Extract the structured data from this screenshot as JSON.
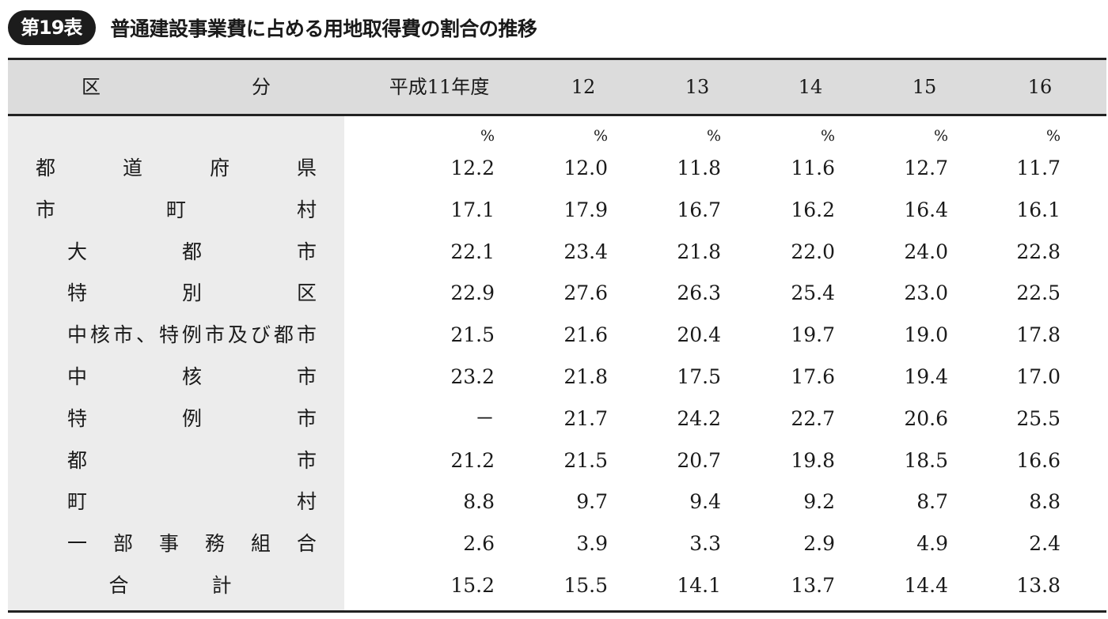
{
  "table_number": "第19表",
  "title": "普通建設事業費に占める用地取得費の割合の推移",
  "header": {
    "category_chars": [
      "区",
      "分"
    ],
    "years": [
      "平成11年度",
      "12",
      "13",
      "14",
      "15",
      "16"
    ]
  },
  "unit": "%",
  "rows": [
    {
      "chars": [
        "都",
        "道",
        "府",
        "県"
      ],
      "values": [
        "12.2",
        "12.0",
        "11.8",
        "11.6",
        "12.7",
        "11.7"
      ]
    },
    {
      "chars": [
        "市",
        "町",
        "村"
      ],
      "values": [
        "17.1",
        "17.9",
        "16.7",
        "16.2",
        "16.4",
        "16.1"
      ]
    },
    {
      "chars": [
        "大",
        "都",
        "市"
      ],
      "values": [
        "22.1",
        "23.4",
        "21.8",
        "22.0",
        "24.0",
        "22.8"
      ]
    },
    {
      "chars": [
        "特",
        "別",
        "区"
      ],
      "values": [
        "22.9",
        "27.6",
        "26.3",
        "25.4",
        "23.0",
        "22.5"
      ]
    },
    {
      "chars": [
        "中",
        "核",
        "市",
        "、",
        "特",
        "例",
        "市",
        "及",
        "び",
        "都",
        "市"
      ],
      "values": [
        "21.5",
        "21.6",
        "20.4",
        "19.7",
        "19.0",
        "17.8"
      ]
    },
    {
      "chars": [
        "中",
        "核",
        "市"
      ],
      "values": [
        "23.2",
        "21.8",
        "17.5",
        "17.6",
        "19.4",
        "17.0"
      ]
    },
    {
      "chars": [
        "特",
        "例",
        "市"
      ],
      "values": [
        "－",
        "21.7",
        "24.2",
        "22.7",
        "20.6",
        "25.5"
      ]
    },
    {
      "chars": [
        "都",
        "市"
      ],
      "values": [
        "21.2",
        "21.5",
        "20.7",
        "19.8",
        "18.5",
        "16.6"
      ]
    },
    {
      "chars": [
        "町",
        "村"
      ],
      "values": [
        "8.8",
        "9.7",
        "9.4",
        "9.2",
        "8.7",
        "8.8"
      ]
    },
    {
      "chars": [
        "一",
        "部",
        "事",
        "務",
        "組",
        "合"
      ],
      "values": [
        "2.6",
        "3.9",
        "3.3",
        "2.9",
        "4.9",
        "2.4"
      ]
    },
    {
      "chars": [
        "合",
        "計"
      ],
      "values": [
        "15.2",
        "15.5",
        "14.1",
        "13.7",
        "14.4",
        "13.8"
      ]
    }
  ]
}
